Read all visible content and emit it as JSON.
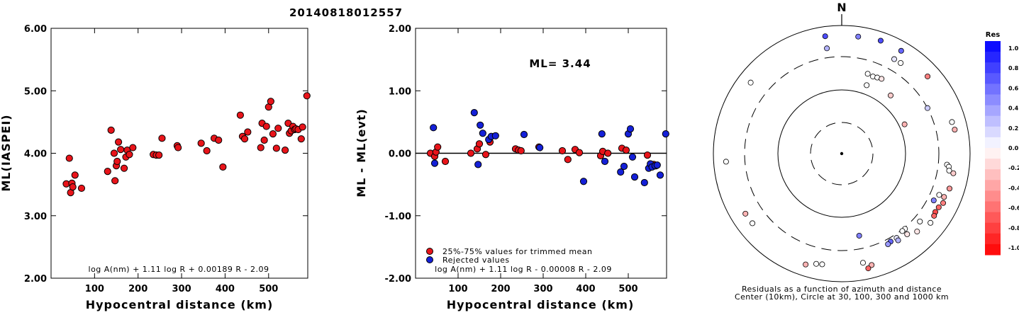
{
  "title": "20140818012557",
  "chart_data": [
    {
      "type": "scatter",
      "xlabel": "Hypocentral distance (km)",
      "ylabel": "ML(IASPEI)",
      "xlim": [
        0,
        590
      ],
      "ylim": [
        2.0,
        6.0
      ],
      "xticks": [
        "100",
        "200",
        "300",
        "400",
        "500"
      ],
      "xtick_values": [
        100,
        200,
        300,
        400,
        500
      ],
      "yticks": [
        "2.00",
        "3.00",
        "4.00",
        "5.00",
        "6.00"
      ],
      "ytick_values": [
        2,
        3,
        4,
        5,
        6
      ],
      "equation": "log A(nm) + 1.11 log R + 0.00189 R - 2.09",
      "series": [
        {
          "color": "#e8141a",
          "points": [
            [
              35,
              3.51
            ],
            [
              42,
              3.92
            ],
            [
              45,
              3.37
            ],
            [
              48,
              3.52
            ],
            [
              50,
              3.46
            ],
            [
              55,
              3.65
            ],
            [
              70,
              3.44
            ],
            [
              130,
              3.71
            ],
            [
              138,
              4.37
            ],
            [
              145,
              4.0
            ],
            [
              147,
              3.56
            ],
            [
              150,
              3.8
            ],
            [
              152,
              3.87
            ],
            [
              155,
              4.18
            ],
            [
              160,
              4.06
            ],
            [
              168,
              3.76
            ],
            [
              172,
              3.94
            ],
            [
              175,
              4.05
            ],
            [
              180,
              3.98
            ],
            [
              188,
              4.09
            ],
            [
              235,
              3.98
            ],
            [
              242,
              3.97
            ],
            [
              248,
              3.97
            ],
            [
              255,
              4.24
            ],
            [
              290,
              4.12
            ],
            [
              292,
              4.09
            ],
            [
              345,
              4.16
            ],
            [
              358,
              4.04
            ],
            [
              375,
              4.24
            ],
            [
              385,
              4.21
            ],
            [
              395,
              3.78
            ],
            [
              435,
              4.61
            ],
            [
              440,
              4.27
            ],
            [
              445,
              4.23
            ],
            [
              452,
              4.34
            ],
            [
              482,
              4.09
            ],
            [
              485,
              4.48
            ],
            [
              490,
              4.21
            ],
            [
              495,
              4.43
            ],
            [
              500,
              4.74
            ],
            [
              505,
              4.83
            ],
            [
              510,
              4.31
            ],
            [
              518,
              4.08
            ],
            [
              522,
              4.4
            ],
            [
              538,
              4.05
            ],
            [
              545,
              4.48
            ],
            [
              548,
              4.32
            ],
            [
              552,
              4.36
            ],
            [
              556,
              4.43
            ],
            [
              560,
              4.38
            ],
            [
              563,
              4.39
            ],
            [
              568,
              4.38
            ],
            [
              575,
              4.23
            ],
            [
              578,
              4.42
            ],
            [
              588,
              4.92
            ]
          ]
        }
      ]
    },
    {
      "type": "scatter",
      "xlabel": "Hypocentral distance (km)",
      "ylabel": "ML - ML(evt)",
      "xlim": [
        0,
        590
      ],
      "ylim": [
        -2.0,
        2.0
      ],
      "xticks": [
        "100",
        "200",
        "300",
        "400",
        "500"
      ],
      "xtick_values": [
        100,
        200,
        300,
        400,
        500
      ],
      "yticks": [
        "-2.00",
        "-1.00",
        "0.00",
        "1.00",
        "2.00"
      ],
      "ytick_values": [
        -2,
        -1,
        0,
        1,
        2
      ],
      "annotation": "ML= 3.44",
      "equation": "log A(nm) + 1.11 log R - 0.00008 R - 2.09",
      "legend": [
        {
          "label": "25%-75% values for trimmed mean",
          "color": "#e8141a"
        },
        {
          "label": "Rejected values",
          "color": "#1420d8"
        }
      ],
      "series": [
        {
          "color": "#e8141a",
          "points": [
            [
              35,
              0.0
            ],
            [
              45,
              -0.05
            ],
            [
              48,
              0.02
            ],
            [
              52,
              0.1
            ],
            [
              70,
              -0.13
            ],
            [
              130,
              0.0
            ],
            [
              145,
              0.07
            ],
            [
              150,
              0.15
            ],
            [
              165,
              -0.02
            ],
            [
              175,
              0.18
            ],
            [
              235,
              0.07
            ],
            [
              242,
              0.05
            ],
            [
              248,
              0.04
            ],
            [
              290,
              0.1
            ],
            [
              345,
              0.04
            ],
            [
              358,
              -0.1
            ],
            [
              375,
              0.06
            ],
            [
              385,
              0.01
            ],
            [
              435,
              -0.04
            ],
            [
              440,
              0.03
            ],
            [
              452,
              0.0
            ],
            [
              485,
              0.08
            ],
            [
              495,
              0.05
            ],
            [
              545,
              -0.03
            ],
            [
              560,
              -0.18
            ],
            [
              565,
              -0.2
            ]
          ]
        },
        {
          "color": "#1420d8",
          "points": [
            [
              42,
              0.41
            ],
            [
              45,
              -0.16
            ],
            [
              138,
              0.65
            ],
            [
              147,
              -0.18
            ],
            [
              152,
              0.45
            ],
            [
              158,
              0.32
            ],
            [
              172,
              0.22
            ],
            [
              178,
              0.27
            ],
            [
              188,
              0.28
            ],
            [
              255,
              0.3
            ],
            [
              292,
              0.09
            ],
            [
              395,
              -0.45
            ],
            [
              438,
              0.31
            ],
            [
              445,
              -0.13
            ],
            [
              482,
              -0.3
            ],
            [
              490,
              -0.21
            ],
            [
              500,
              0.31
            ],
            [
              505,
              0.39
            ],
            [
              510,
              -0.06
            ],
            [
              515,
              -0.38
            ],
            [
              538,
              -0.47
            ],
            [
              548,
              -0.24
            ],
            [
              552,
              -0.17
            ],
            [
              556,
              -0.22
            ],
            [
              563,
              -0.2
            ],
            [
              568,
              -0.19
            ],
            [
              575,
              -0.35
            ],
            [
              588,
              0.31
            ]
          ]
        }
      ]
    },
    {
      "type": "scatter",
      "subtype": "polar",
      "north_label": "N",
      "caption_line1": "Residuals as a function of azimuth and distance",
      "caption_line2": "Center (10km), Circle at 30, 100, 300 and 1000 km",
      "rings_km": [
        30,
        100,
        300,
        1000
      ],
      "colorbar_title": "Res",
      "colorbar_labels": [
        "1.0",
        "0.8",
        "0.6",
        "0.4",
        "0.2",
        "0.0",
        "-0.2",
        "-0.4",
        "-0.6",
        "-0.8",
        "-1.0"
      ],
      "points": [
        {
          "az": 352,
          "dist": 690,
          "res": 0.7
        },
        {
          "az": 8,
          "dist": 680,
          "res": 0.5
        },
        {
          "az": 19,
          "dist": 715,
          "res": 0.7
        },
        {
          "az": 30,
          "dist": 695,
          "res": 0.6
        },
        {
          "az": 352,
          "dist": 430,
          "res": 0.3
        },
        {
          "az": 29,
          "dist": 460,
          "res": 0.1
        },
        {
          "az": 33,
          "dist": 460,
          "res": 0.0
        },
        {
          "az": 48,
          "dist": 610,
          "res": -0.5
        },
        {
          "az": 308,
          "dist": 610,
          "res": 0.0
        },
        {
          "az": 18,
          "dist": 195,
          "res": 0.0
        },
        {
          "az": 22,
          "dist": 190,
          "res": 0.0
        },
        {
          "az": 25,
          "dist": 195,
          "res": 0.0
        },
        {
          "az": 28,
          "dist": 200,
          "res": -0.1
        },
        {
          "az": 20,
          "dist": 135,
          "res": 0.0
        },
        {
          "az": 40,
          "dist": 150,
          "res": -0.2
        },
        {
          "az": 65,
          "dist": 120,
          "res": -0.3
        },
        {
          "az": 62,
          "dist": 300,
          "res": 0.2
        },
        {
          "az": 78,
          "dist": 610,
          "res": -0.3
        },
        {
          "az": 74,
          "dist": 590,
          "res": 0.0
        },
        {
          "az": 266,
          "dist": 620,
          "res": 0.0
        },
        {
          "az": 96,
          "dist": 420,
          "res": 0.0
        },
        {
          "az": 97,
          "dist": 455,
          "res": 0.0
        },
        {
          "az": 99,
          "dist": 470,
          "res": 0.0
        },
        {
          "az": 100,
          "dist": 560,
          "res": -0.2
        },
        {
          "az": 108,
          "dist": 560,
          "res": -0.4
        },
        {
          "az": 113,
          "dist": 515,
          "res": -0.3
        },
        {
          "az": 116,
          "dist": 550,
          "res": -0.5
        },
        {
          "az": 119,
          "dist": 510,
          "res": -0.6
        },
        {
          "az": 122,
          "dist": 500,
          "res": -0.7
        },
        {
          "az": 124,
          "dist": 520,
          "res": -0.6
        },
        {
          "az": 113,
          "dist": 420,
          "res": 0.0
        },
        {
          "az": 117,
          "dist": 380,
          "res": 0.5
        },
        {
          "az": 168,
          "dist": 195,
          "res": 0.5
        },
        {
          "az": 131,
          "dist": 385,
          "res": 0.0
        },
        {
          "az": 140,
          "dist": 315,
          "res": 0.0
        },
        {
          "az": 142,
          "dist": 315,
          "res": 0.0
        },
        {
          "az": 147,
          "dist": 345,
          "res": 0.1
        },
        {
          "az": 151,
          "dist": 345,
          "res": 0.6
        },
        {
          "az": 153,
          "dist": 360,
          "res": 0.4
        },
        {
          "az": 147,
          "dist": 385,
          "res": 0.3
        },
        {
          "az": 141,
          "dist": 390,
          "res": -0.1
        },
        {
          "az": 136,
          "dist": 465,
          "res": -0.1
        },
        {
          "az": 128,
          "dist": 545,
          "res": 0.0
        },
        {
          "az": 169,
          "dist": 520,
          "res": 0.0
        },
        {
          "az": 165,
          "dist": 610,
          "res": -0.3
        },
        {
          "az": 167,
          "dist": 670,
          "res": -0.6
        },
        {
          "az": 190,
          "dist": 545,
          "res": 0.0
        },
        {
          "az": 193,
          "dist": 560,
          "res": 0.0
        },
        {
          "az": 198,
          "dist": 640,
          "res": -0.3
        },
        {
          "az": 232,
          "dist": 560,
          "res": 0.0
        },
        {
          "az": 238,
          "dist": 565,
          "res": -0.3
        }
      ]
    }
  ]
}
